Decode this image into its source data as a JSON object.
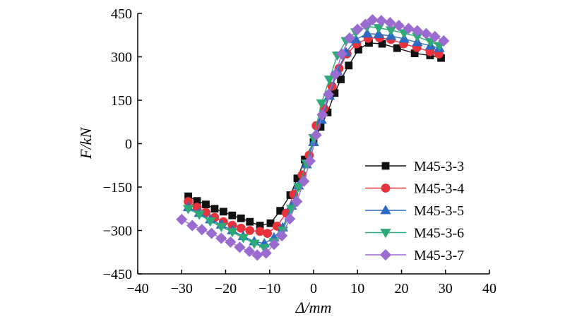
{
  "chart_data": {
    "type": "line",
    "xlabel": "Δ/mm",
    "ylabel": "F/kN",
    "xlim": [
      -40,
      40
    ],
    "ylim": [
      -450,
      450
    ],
    "xticks": [
      "−40",
      "−30",
      "−20",
      "−10",
      "0",
      "10",
      "20",
      "30",
      "40"
    ],
    "yticks": [
      "−450",
      "−300",
      "−150",
      "0",
      "150",
      "300",
      "450"
    ],
    "legend_position": "bottom-right",
    "grid": false,
    "series": [
      {
        "name": "M45-3-3",
        "color": "#111111",
        "marker": "square",
        "x": [
          -28.5,
          -26.5,
          -24.5,
          -22.5,
          -20.5,
          -18.5,
          -16.5,
          -14.5,
          -12.2,
          -9.8,
          -7.6,
          -5.3,
          -3.7,
          -2.0,
          0.0,
          1.6,
          3.2,
          4.8,
          6.2,
          8,
          10.2,
          12.6,
          15.6,
          19,
          23,
          26.5,
          29
        ],
        "y": [
          -182,
          -198,
          -210,
          -225,
          -235,
          -248,
          -258,
          -270,
          -283,
          -275,
          -232,
          -178,
          -120,
          -55,
          5,
          58,
          108,
          175,
          222,
          270,
          325,
          348,
          345,
          330,
          312,
          305,
          296
        ]
      },
      {
        "name": "M45-3-4",
        "color": "#e8323c",
        "marker": "circle",
        "x": [
          -28.5,
          -26.5,
          -24.5,
          -22.5,
          -20.5,
          -18.5,
          -16.5,
          -14.5,
          -12.2,
          -10.5,
          -8.3,
          -6.2,
          -4.5,
          -2.6,
          -1.0,
          0.6,
          2.4,
          4.2,
          5.8,
          7.6,
          9.8,
          12.4,
          15,
          17.6,
          20.5,
          23.5,
          26.5,
          28.5
        ],
        "y": [
          -200,
          -220,
          -238,
          -255,
          -270,
          -282,
          -292,
          -300,
          -303,
          -310,
          -285,
          -240,
          -175,
          -108,
          -40,
          62,
          122,
          198,
          260,
          310,
          345,
          364,
          366,
          360,
          345,
          332,
          318,
          310
        ]
      },
      {
        "name": "M45-3-5",
        "color": "#2e6ac4",
        "marker": "triangle",
        "x": [
          -28.5,
          -26,
          -23.5,
          -21,
          -18.5,
          -16,
          -13.5,
          -11.2,
          -9,
          -7,
          -5,
          -3.4,
          -1.6,
          0,
          1.8,
          3.6,
          5.4,
          7.4,
          9.6,
          12.2,
          14.8,
          17.6,
          20.6,
          23.6,
          26.6,
          28.6
        ],
        "y": [
          -220,
          -240,
          -262,
          -280,
          -300,
          -320,
          -338,
          -345,
          -325,
          -290,
          -215,
          -145,
          -72,
          5,
          82,
          165,
          250,
          315,
          360,
          380,
          378,
          372,
          362,
          350,
          338,
          330
        ]
      },
      {
        "name": "M45-3-6",
        "color": "#2eaa78",
        "marker": "triangle-down",
        "x": [
          -28.5,
          -26,
          -23.5,
          -21,
          -18.5,
          -16,
          -13.5,
          -11.2,
          -9,
          -7,
          -5,
          -3.4,
          -1.6,
          0,
          1.8,
          3.6,
          5.4,
          7.4,
          9.6,
          12.2,
          14.8,
          17.6,
          20.6,
          23.6,
          26.6,
          28.6
        ],
        "y": [
          -225,
          -245,
          -268,
          -287,
          -305,
          -325,
          -345,
          -360,
          -340,
          -300,
          -225,
          -150,
          -68,
          20,
          140,
          222,
          305,
          355,
          385,
          405,
          400,
          392,
          382,
          370,
          352,
          338
        ]
      },
      {
        "name": "M45-3-7",
        "color": "#9a6cd0",
        "marker": "diamond",
        "x": [
          -30,
          -27.6,
          -25.4,
          -23.2,
          -21,
          -18.9,
          -16.8,
          -14.6,
          -12.8,
          -10.8,
          -9,
          -7.2,
          -5.4,
          -3.8,
          -2.2,
          -0.8,
          0.6,
          2.0,
          3.4,
          5.0,
          6.4,
          8.2,
          10,
          11.8,
          13.4,
          15.4,
          17.4,
          19.4,
          21.6,
          23.6,
          25.6,
          27.6,
          29.6
        ],
        "y": [
          -262,
          -283,
          -297,
          -310,
          -327,
          -340,
          -358,
          -372,
          -385,
          -378,
          -348,
          -318,
          -260,
          -200,
          -130,
          -60,
          30,
          100,
          170,
          240,
          310,
          365,
          395,
          412,
          428,
          425,
          418,
          408,
          398,
          390,
          380,
          370,
          355
        ]
      }
    ]
  }
}
